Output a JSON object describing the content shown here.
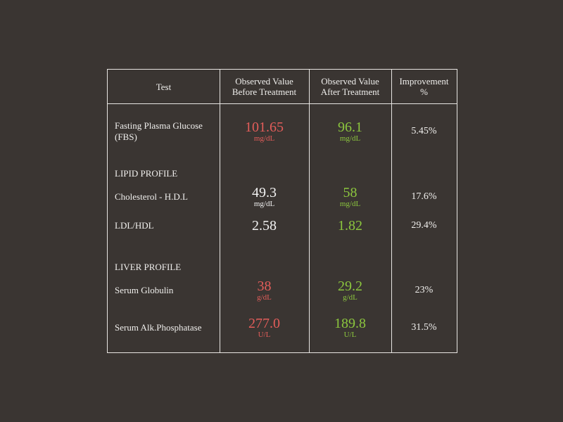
{
  "table": {
    "header": [
      "Test",
      "Observed Value Before Treatment",
      "Observed Value After Treatment",
      "Improvement %"
    ],
    "rows": [
      {
        "test": "Fasting Plasma Glucose (FBS)",
        "before": {
          "value": "101.65",
          "unit": "mg/dL",
          "color": "#e35d5a"
        },
        "after": {
          "value": "96.1",
          "unit": "mg/dL",
          "color": "#8cc63e"
        },
        "improvement": "5.45%"
      },
      {
        "section": "LIPID PROFILE"
      },
      {
        "test": "Cholesterol - H.D.L",
        "before": {
          "value": "49.3",
          "unit": "mg/dL",
          "color": "#f2f2f2"
        },
        "after": {
          "value": "58",
          "unit": "mg/dL",
          "color": "#8cc63e"
        },
        "improvement": "17.6%"
      },
      {
        "test": "LDL/HDL",
        "before": {
          "value": "2.58",
          "color": "#f2f2f2"
        },
        "after": {
          "value": "1.82",
          "color": "#8cc63e"
        },
        "improvement": "29.4%"
      },
      {
        "section": "LIVER PROFILE"
      },
      {
        "test": "Serum Globulin",
        "before": {
          "value": "38",
          "unit": "g/dL",
          "color": "#e35d5a"
        },
        "after": {
          "value": "29.2",
          "unit": "g/dL",
          "color": "#8cc63e"
        },
        "improvement": "23%"
      },
      {
        "test": "Serum Alk.Phosphatase",
        "before": {
          "value": "277.0",
          "unit": "U/L",
          "color": "#e35d5a"
        },
        "after": {
          "value": "189.8",
          "unit": "U/L",
          "color": "#8cc63e"
        },
        "improvement": "31.5%"
      }
    ]
  }
}
